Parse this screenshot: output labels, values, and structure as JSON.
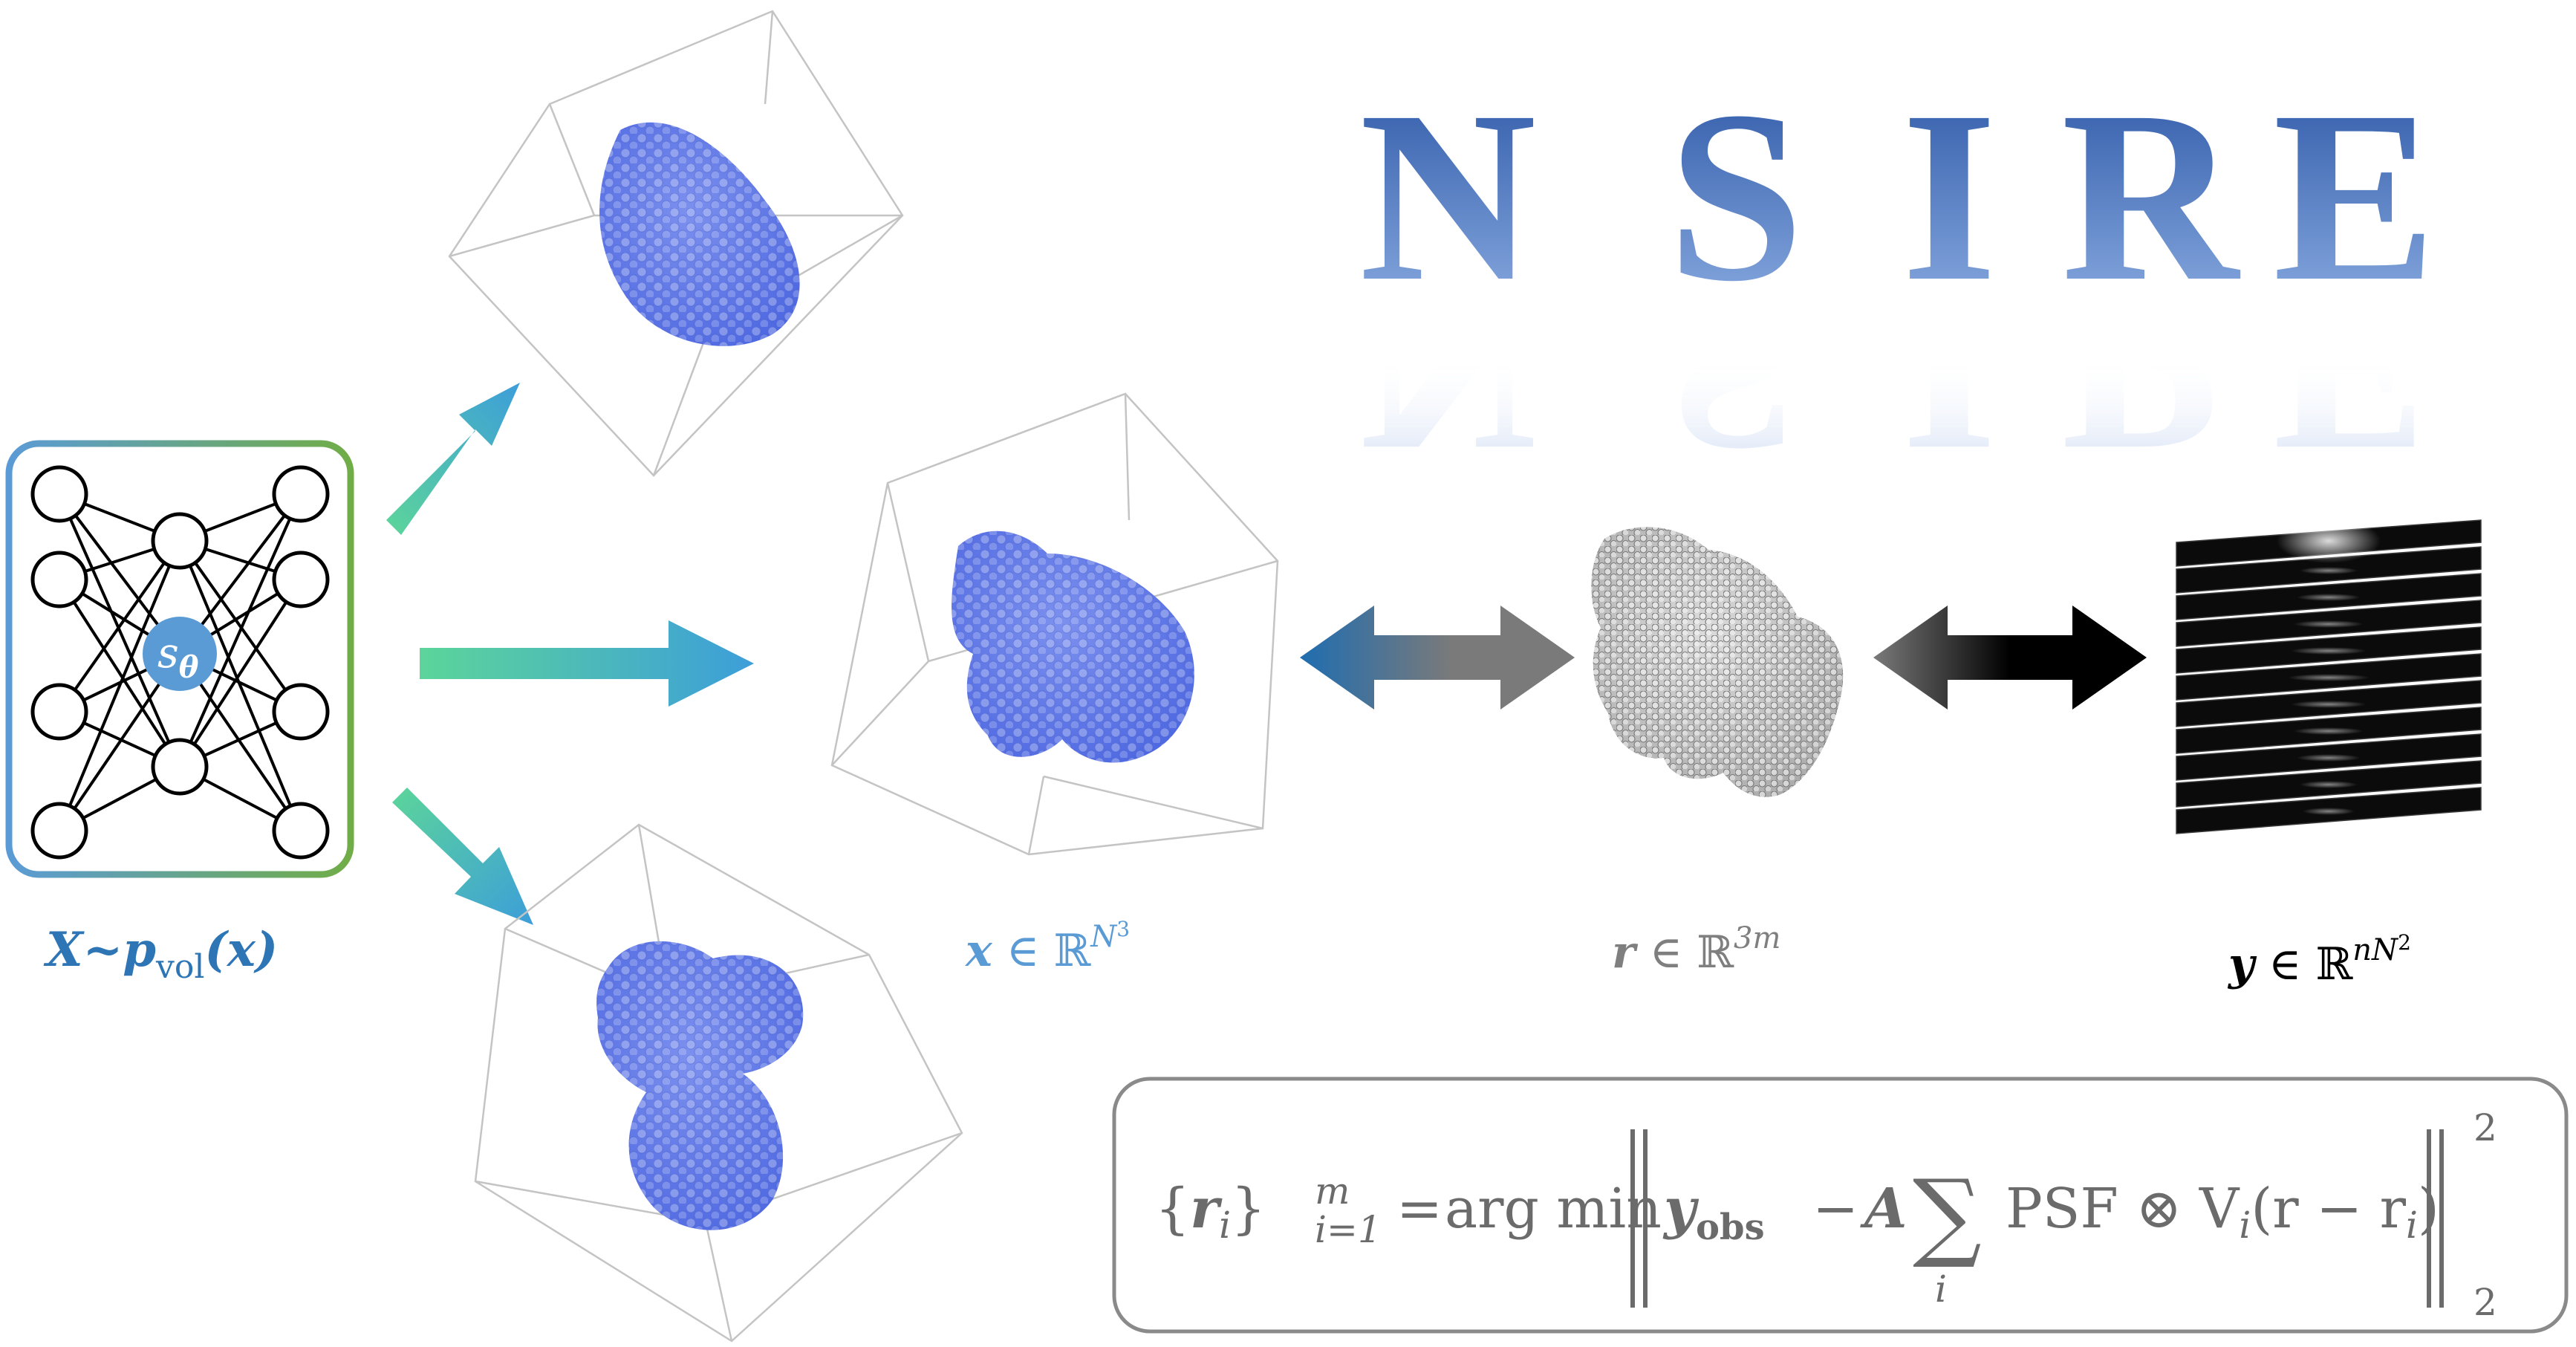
{
  "title": {
    "letters": [
      "N",
      "S",
      "I",
      "R",
      "E"
    ]
  },
  "network": {
    "node_label": "s",
    "node_label_sub": "θ",
    "distribution_label": "X~p",
    "distribution_sub": "vol",
    "distribution_arg": "(x)"
  },
  "labels": {
    "x_space": {
      "var": "x",
      "rel": " ∈ ℝ",
      "sup": "N",
      "supsup": "3"
    },
    "r_space": {
      "var": "r",
      "rel": " ∈ ℝ",
      "sup": "3m"
    },
    "y_space": {
      "var": "y",
      "rel": " ∈ ℝ",
      "sup": "nN",
      "supsup": "2"
    }
  },
  "equation": {
    "lhs_open": "{",
    "lhs_var": "r",
    "lhs_var_sub": "i",
    "lhs_close": "}",
    "lhs_sub": "i=1",
    "lhs_sup": "m",
    "equals": "=",
    "argmin": "arg min",
    "y_obs": "y",
    "y_obs_sub": "obs",
    "minus": "−",
    "A": "A",
    "sum": "∑",
    "sum_sub": "i",
    "psf": "PSF ⊗ V",
    "psf_sub": "i",
    "psf_arg": "(r − r",
    "psf_arg_sub": "i",
    "psf_arg_close": ")",
    "norm_sup": "2",
    "norm_sub": "2"
  },
  "colors": {
    "title_top": "#2f5ba8",
    "title_bottom": "#7ea2dc",
    "net_border_left": "#5b9bd5",
    "net_border_right": "#70ad47",
    "center_node": "#5b9bd5",
    "x_label": "#5b9bd5",
    "r_label": "#7f7f7f",
    "y_label": "#000000",
    "net_label": "#2e75b6",
    "blob": "#5f79e8",
    "gray_blob": "#c9c9c9",
    "arrow_green": "#5ad19a",
    "arrow_blue": "#3fa0d8"
  }
}
